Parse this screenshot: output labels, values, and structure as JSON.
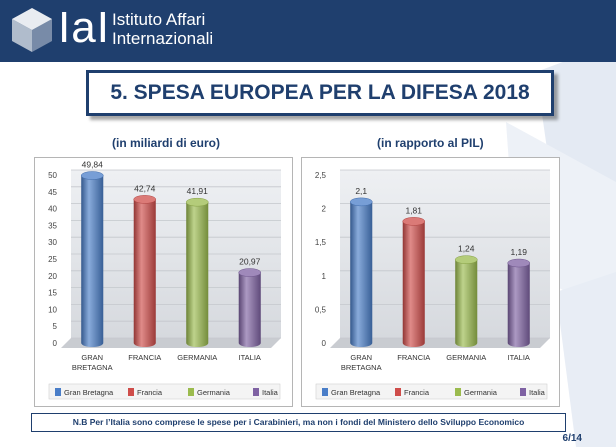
{
  "header": {
    "logo_text": "IaI",
    "org_line1": "Istituto Affari",
    "org_line2": "Internazionali",
    "logo_icon": "cube-icon",
    "band_color": "#1f3f6e"
  },
  "slide": {
    "title": "5. SPESA EUROPEA PER LA DIFESA 2018",
    "footnote": "N.B Per l’Italia sono comprese le spese per i Carabinieri, ma non i fondi del Ministero dello Sviluppo Economico",
    "page": "6/14"
  },
  "colors": {
    "Gran Bretagna": "#4a7ec8",
    "Francia": "#cf4d4a",
    "Germania": "#9bbb4e",
    "Italia": "#7f62a3"
  },
  "chart_data": [
    {
      "type": "bar",
      "title": "(in miliardi di euro)",
      "categories": [
        "GRAN BRETAGNA",
        "FRANCIA",
        "GERMANIA",
        "ITALIA"
      ],
      "category_lines": [
        [
          "GRAN",
          "BRETAGNA"
        ],
        [
          "FRANCIA"
        ],
        [
          "GERMANIA"
        ],
        [
          "ITALIA"
        ]
      ],
      "values": [
        49.84,
        42.74,
        41.91,
        20.97
      ],
      "value_labels": [
        "49,84",
        "42,74",
        "41,91",
        "20,97"
      ],
      "ylim": [
        0,
        50
      ],
      "yticks": [
        0,
        5,
        10,
        15,
        20,
        25,
        30,
        35,
        40,
        45,
        50
      ],
      "ytick_labels": [
        "0",
        "5",
        "10",
        "15",
        "20",
        "25",
        "30",
        "35",
        "40",
        "45",
        "50"
      ],
      "legend": [
        "Gran Bretagna",
        "Francia",
        "Germania",
        "Italia"
      ],
      "legend_position": "bottom"
    },
    {
      "type": "bar",
      "title": "(in rapporto al PIL)",
      "categories": [
        "GRAN BRETAGNA",
        "FRANCIA",
        "GERMANIA",
        "ITALIA"
      ],
      "category_lines": [
        [
          "GRAN",
          "BRETAGNA"
        ],
        [
          "FRANCIA"
        ],
        [
          "GERMANIA"
        ],
        [
          "ITALIA"
        ]
      ],
      "values": [
        2.1,
        1.81,
        1.24,
        1.19
      ],
      "value_labels": [
        "2,1",
        "1,81",
        "1,24",
        "1,19"
      ],
      "ylim": [
        0,
        2.5
      ],
      "yticks": [
        0,
        0.5,
        1,
        1.5,
        2,
        2.5
      ],
      "ytick_labels": [
        "0",
        "0,5",
        "1",
        "1,5",
        "2",
        "2,5"
      ],
      "legend": [
        "Gran Bretagna",
        "Francia",
        "Germania",
        "Italia"
      ],
      "legend_position": "bottom"
    }
  ]
}
